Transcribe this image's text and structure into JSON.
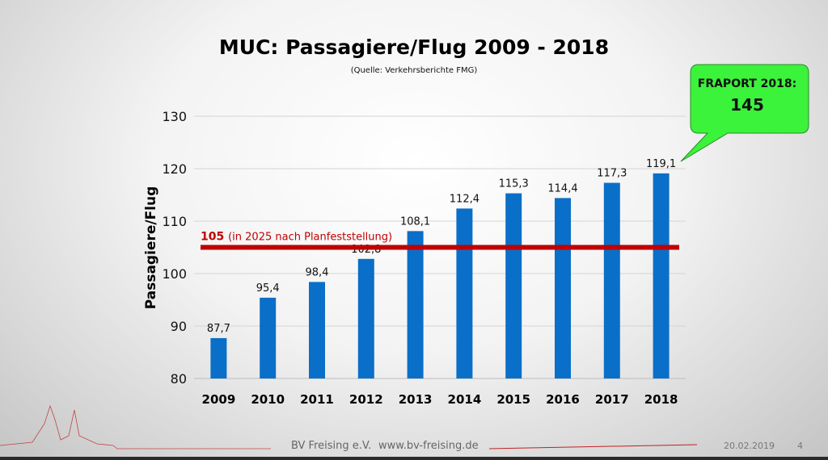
{
  "slide": {
    "title": "MUC: Passagiere/Flug 2009 - 2018",
    "subtitle": "(Quelle: Verkehrsberichte FMG)",
    "footer_left": "BV Freising e.V.",
    "footer_url": "www.bv-freising.de",
    "footer_date": "20.02.2019",
    "page_number": "4"
  },
  "callout": {
    "label": "FRAPORT 2018:",
    "value": "145"
  },
  "colors": {
    "bar": "#0a6fc8",
    "reference_line": "#c00000",
    "callout_fill": "#3bf33b",
    "gridline": "#d4d4d4"
  },
  "chart_data": {
    "type": "bar",
    "title": "MUC: Passagiere/Flug 2009 - 2018",
    "xlabel": "",
    "ylabel": "Passagiere/Flug",
    "categories": [
      "2009",
      "2010",
      "2011",
      "2012",
      "2013",
      "2014",
      "2015",
      "2016",
      "2017",
      "2018"
    ],
    "values": [
      87.7,
      95.4,
      98.4,
      102.8,
      108.1,
      112.4,
      115.3,
      114.4,
      117.3,
      119.1
    ],
    "value_labels": [
      "87,7",
      "95,4",
      "98,4",
      "102,8",
      "108,1",
      "112,4",
      "115,3",
      "114,4",
      "117,3",
      "119,1"
    ],
    "ylim": [
      80,
      130
    ],
    "yticks": [
      80,
      90,
      100,
      110,
      120,
      130
    ],
    "grid": true,
    "reference_line": {
      "value": 105,
      "label_value": "105",
      "label_text": "(in 2025 nach Planfeststellung)"
    }
  }
}
